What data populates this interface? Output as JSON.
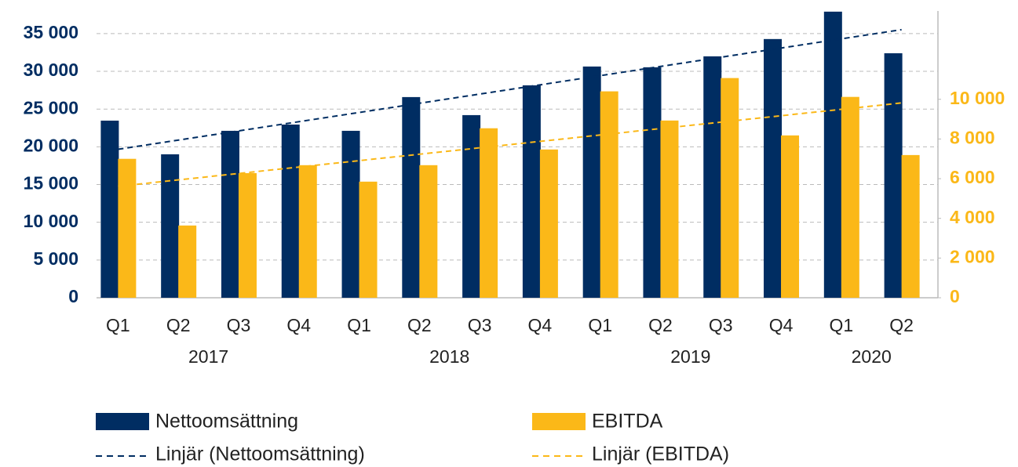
{
  "chart_data": {
    "type": "bar",
    "categories": [
      "Q1",
      "Q2",
      "Q3",
      "Q4",
      "Q1",
      "Q2",
      "Q3",
      "Q4",
      "Q1",
      "Q2",
      "Q3",
      "Q4",
      "Q1",
      "Q2"
    ],
    "x_years": [
      "2017",
      "2017",
      "2017",
      "2017",
      "2018",
      "2018",
      "2018",
      "2018",
      "2019",
      "2019",
      "2019",
      "2019",
      "2020",
      "2020"
    ],
    "series": [
      {
        "name": "Nettoomsättning",
        "color": "#002d62",
        "axis": "y",
        "values": [
          23470,
          19010,
          22120,
          22950,
          22120,
          26590,
          24200,
          28150,
          30640,
          30540,
          31990,
          34280,
          37910,
          32400
        ],
        "trendline": {
          "name": "Linjär (Nettoomsättning)",
          "color": "#002d62"
        }
      },
      {
        "name": "EBITDA",
        "color": "#fbb818",
        "axis": "y2",
        "values": [
          7000,
          3640,
          6280,
          6680,
          5850,
          6680,
          8540,
          7470,
          10400,
          8930,
          11070,
          8180,
          10120,
          7190
        ],
        "trendline": {
          "name": "Linjär (EBITDA)",
          "color": "#fbb818"
        }
      }
    ],
    "ylim": [
      0,
      38000
    ],
    "yticks": [
      0,
      {
        "value": 5000,
        "label": "5 000"
      },
      {
        "value": 10000,
        "label": "10 000"
      },
      {
        "value": 15000,
        "label": "15 000"
      },
      {
        "value": 20000,
        "label": "20 000"
      },
      {
        "value": 25000,
        "label": "25 000"
      },
      {
        "value": 30000,
        "label": "30 000"
      },
      {
        "value": 35000,
        "label": "35 000"
      }
    ],
    "y2lim": [
      0,
      14450
    ],
    "y2ticks": [
      0,
      {
        "value": 2000,
        "label": "2 000"
      },
      {
        "value": 4000,
        "label": "4 000"
      },
      {
        "value": 6000,
        "label": "6 000"
      },
      {
        "value": 8000,
        "label": "8 000"
      },
      {
        "value": 10000,
        "label": "10 000"
      }
    ],
    "grid": true,
    "legend": "bottom"
  }
}
